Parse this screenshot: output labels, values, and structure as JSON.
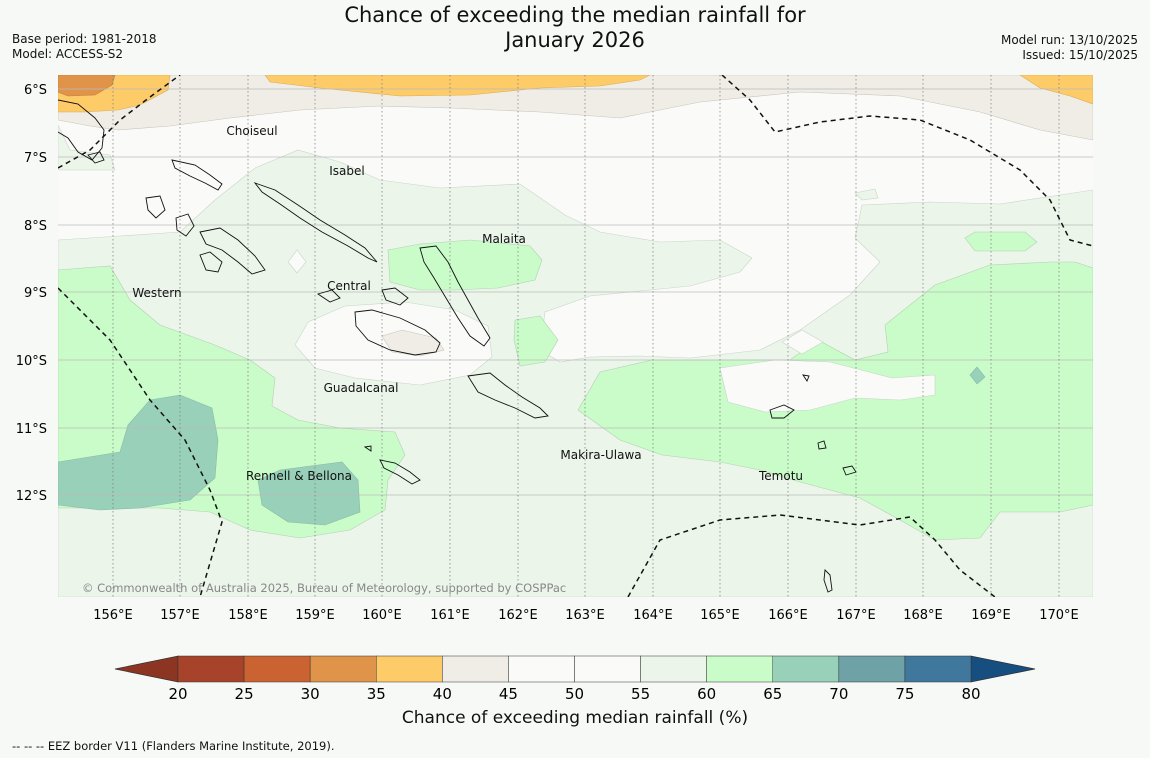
{
  "header": {
    "title_line1": "Chance of exceeding the median rainfall for",
    "title_line2": "January 2026",
    "base_period": "Base period: 1981-2018",
    "model": "Model: ACCESS-S2",
    "model_run": "Model run: 13/10/2025",
    "issued": "Issued: 15/10/2025"
  },
  "map": {
    "lat_labels": [
      "6°S",
      "7°S",
      "8°S",
      "9°S",
      "10°S",
      "11°S",
      "12°S"
    ],
    "lon_labels": [
      "156°E",
      "157°E",
      "158°E",
      "159°E",
      "160°E",
      "161°E",
      "162°E",
      "163°E",
      "164°E",
      "165°E",
      "166°E",
      "167°E",
      "168°E",
      "169°E",
      "170°E"
    ],
    "province_labels": [
      "Choiseul",
      "Isabel",
      "Malaita",
      "Western",
      "Central",
      "Guadalcanal",
      "Makira-Ulawa",
      "Rennell & Bellona",
      "Temotu"
    ],
    "copyright": "© Commonwealth of Australia 2025, Bureau of Meteorology, supported by COSPPac"
  },
  "colorbar": {
    "ticks": [
      "20",
      "25",
      "30",
      "35",
      "40",
      "45",
      "50",
      "55",
      "60",
      "65",
      "70",
      "75",
      "80"
    ],
    "colors": [
      "#a7432a",
      "#cb6232",
      "#e0944a",
      "#fdcb68",
      "#f0ede7",
      "#fafbf9",
      "#fafbf9",
      "#ebf5ea",
      "#c9fcc8",
      "#98d0b9",
      "#6ea2a7",
      "#3f789c"
    ],
    "under_color": "#8b3522",
    "over_color": "#164e80",
    "title": "Chance of exceeding median rainfall (%)"
  },
  "footnote": "--  --  -- EEZ border V11 (Flanders Marine Institute, 2019)."
}
